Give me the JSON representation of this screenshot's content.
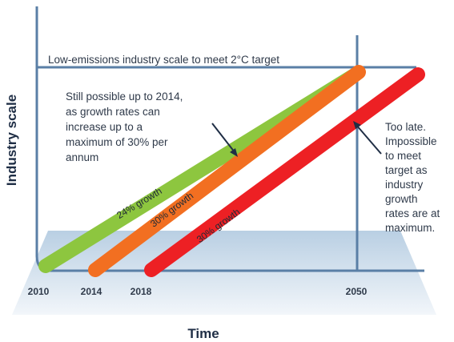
{
  "x_axis_title": "Time",
  "y_axis_title": "Industry scale",
  "target_line_label": "Low-emissions industry scale to meet 2°C target",
  "year_labels": [
    "2010",
    "2014",
    "2018",
    "2050"
  ],
  "annotation_possible": [
    "Still possible up to 2014,",
    "as growth rates can",
    "increase up to a",
    "maximum of 30% per",
    "annum"
  ],
  "annotation_too_late": [
    "Too late.",
    "Impossible",
    "to meet",
    "target as",
    "industry",
    "growth",
    "rates are at",
    "maximum."
  ],
  "paths": [
    {
      "label": "24% growth",
      "start_year": "2010",
      "color": "#8dc63f"
    },
    {
      "label": "30% growth",
      "start_year": "2014",
      "color": "#f26f21"
    },
    {
      "label": "30% growth",
      "start_year": "2018",
      "color": "#ed2024"
    }
  ],
  "colors": {
    "axis": "#5a7fa6",
    "floor_top": "#b9cfe3",
    "floor_bottom": "#f2f6fa",
    "text": "#2f3a4a"
  }
}
